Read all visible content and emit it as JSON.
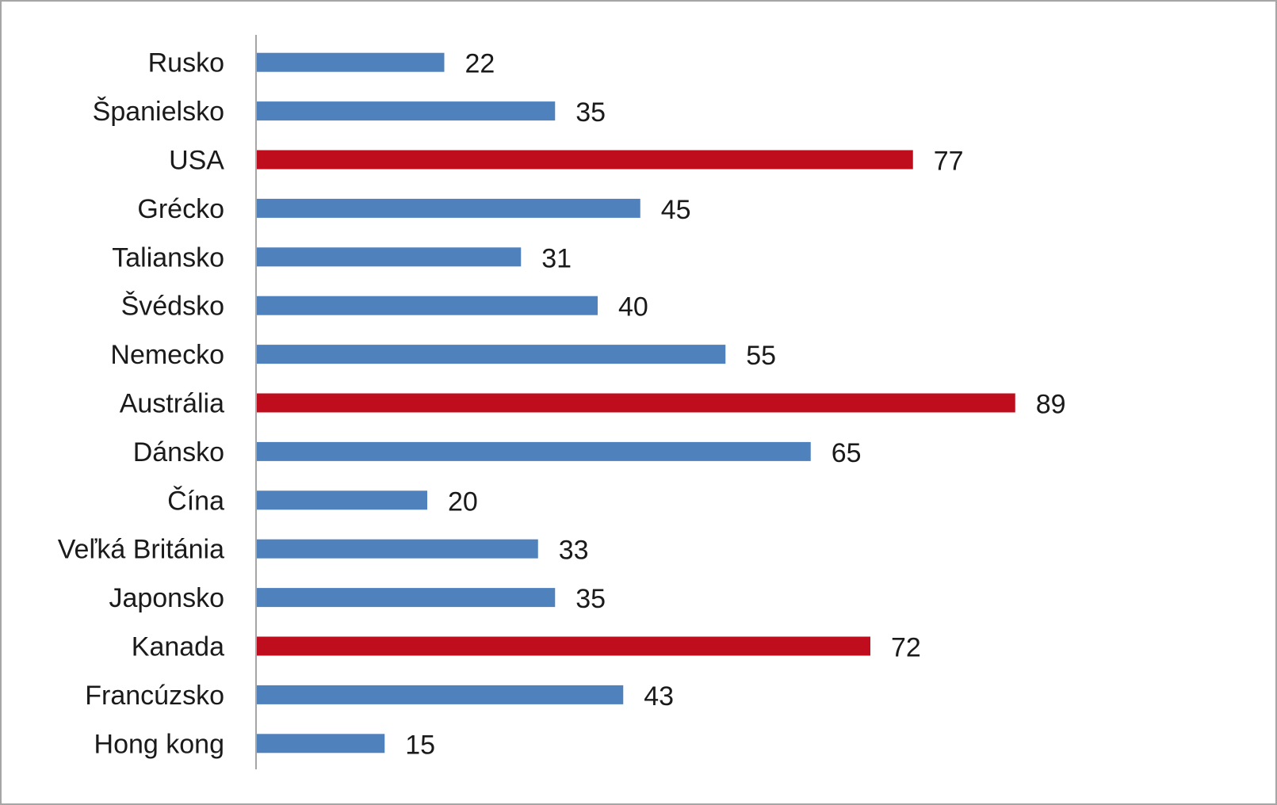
{
  "chart_data": {
    "type": "bar",
    "orientation": "horizontal",
    "categories": [
      "Rusko",
      "Španielsko",
      "USA",
      "Grécko",
      "Taliansko",
      "Švédsko",
      "Nemecko",
      "Austrália",
      "Dánsko",
      "Čína",
      "Veľká Británia",
      "Japonsko",
      "Kanada",
      "Francúzsko",
      "Hong kong"
    ],
    "values": [
      22,
      35,
      77,
      45,
      31,
      40,
      55,
      89,
      65,
      20,
      33,
      35,
      72,
      43,
      15
    ],
    "highlighted": [
      false,
      false,
      true,
      false,
      false,
      false,
      false,
      true,
      false,
      false,
      false,
      false,
      true,
      false,
      false
    ],
    "title": "",
    "xlabel": "",
    "ylabel": "",
    "xlim": [
      0,
      100
    ],
    "grid": false,
    "legend": "none",
    "colors": {
      "default": "#4f81bd",
      "highlight": "#c00d1e",
      "axis": "#a6a6a6"
    }
  }
}
